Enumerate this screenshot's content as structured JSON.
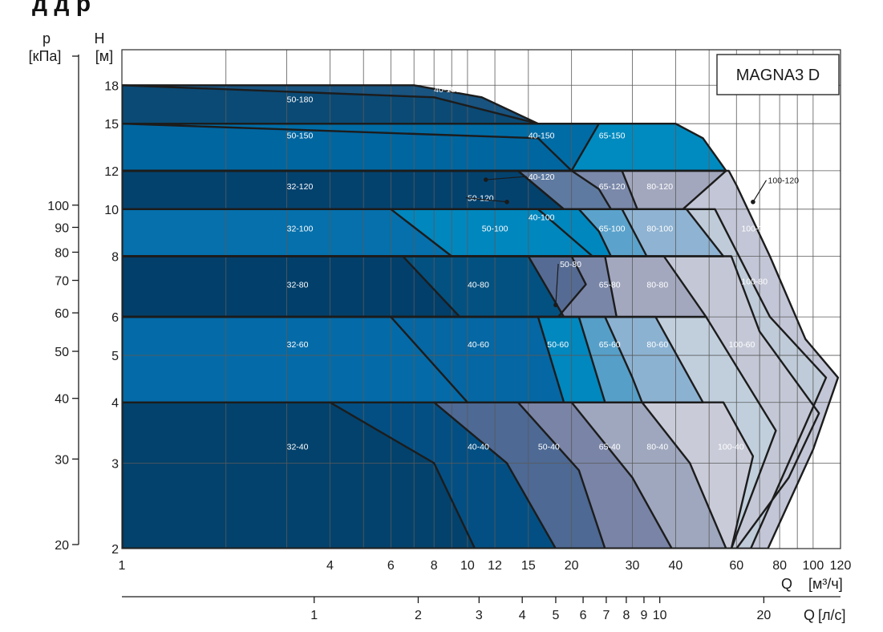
{
  "header_fragment": "д                        д         р",
  "brand_label": "MAGNA3 D",
  "chart_data": {
    "type": "area",
    "title": "",
    "xscale": "log",
    "yscale": "log",
    "xlim": [
      1,
      120
    ],
    "ylim": [
      2,
      20
    ],
    "grid": true,
    "x_unit_label": "Q",
    "x_unit": "[м³/ч]",
    "y_unit_label": "H",
    "y_unit": "[м]",
    "secondary_y_label": "p",
    "secondary_y_unit": "[кПа]",
    "secondary_x_label": "Q",
    "secondary_x_unit": "[л/с]",
    "x_ticks": [
      1,
      4,
      6,
      8,
      10,
      12,
      15,
      20,
      30,
      40,
      60,
      80,
      100,
      120
    ],
    "x_tick_labels": [
      "1",
      "4",
      "6",
      "8",
      "10",
      "12",
      "15",
      "20",
      "30",
      "40",
      "60",
      "80",
      "100",
      "120"
    ],
    "x_grid": [
      1,
      2,
      3,
      4,
      5,
      6,
      7,
      8,
      9,
      10,
      12,
      15,
      20,
      30,
      40,
      50,
      60,
      70,
      80,
      90,
      100,
      120
    ],
    "y_ticks": [
      2,
      3,
      4,
      5,
      6,
      8,
      10,
      12,
      15,
      18
    ],
    "y_tick_labels": [
      "2",
      "3",
      "4",
      "5",
      "6",
      "8",
      "10",
      "12",
      "15",
      "18"
    ],
    "secondary_y_ticks": [
      20,
      30,
      40,
      50,
      60,
      70,
      80,
      90,
      100
    ],
    "secondary_y_tick_labels": [
      "20",
      "30",
      "40",
      "50",
      "60",
      "70",
      "80",
      "90",
      "100"
    ],
    "secondary_x_ticks": [
      1,
      2,
      3,
      4,
      5,
      6,
      7,
      8,
      9,
      10,
      20
    ],
    "secondary_x_tick_labels": [
      "1",
      "2",
      "3",
      "4",
      "5",
      "6",
      "7",
      "8",
      "9",
      "10",
      "20"
    ],
    "regions": [
      {
        "name": "100-120",
        "color": "#c3c6d6",
        "label_color": "#1a1a1a",
        "label_at": [
          74,
          11.3
        ],
        "leader_to": [
          67,
          10.35
        ],
        "points": [
          [
            57,
            12
          ],
          [
            60,
            11.2
          ],
          [
            75,
            8
          ],
          [
            95,
            5.4
          ],
          [
            118,
            4.5
          ],
          [
            100,
            3.2
          ],
          [
            74,
            2
          ],
          [
            1,
            2
          ],
          [
            1,
            12
          ]
        ]
      },
      {
        "name": "100-100",
        "color": "#bfcbd8",
        "label_color": "#ffffff",
        "label_at": [
          62,
          9
        ],
        "points": [
          [
            52,
            10
          ],
          [
            75,
            6
          ],
          [
            109,
            4.5
          ],
          [
            95,
            3.6
          ],
          [
            66,
            2
          ],
          [
            1,
            2
          ],
          [
            1,
            10
          ]
        ]
      },
      {
        "name": "100-80",
        "color": "#c4c8d6",
        "label_color": "#ffffff",
        "label_at": [
          62,
          7
        ],
        "points": [
          [
            58,
            8
          ],
          [
            70,
            5.6
          ],
          [
            104,
            3.8
          ],
          [
            85,
            2.8
          ],
          [
            60,
            2
          ],
          [
            1,
            2
          ],
          [
            1,
            8
          ]
        ]
      },
      {
        "name": "100-60",
        "color": "#c1cfdd",
        "label_color": "#ffffff",
        "label_at": [
          57,
          5.2
        ],
        "points": [
          [
            49,
            6
          ],
          [
            78,
            3.5
          ],
          [
            58,
            2
          ],
          [
            1,
            2
          ],
          [
            1,
            6
          ]
        ]
      },
      {
        "name": "100-40",
        "color": "#c9cbd8",
        "label_color": "#ffffff",
        "label_at": [
          53,
          3.2
        ],
        "points": [
          [
            55,
            4
          ],
          [
            67,
            3.1
          ],
          [
            58,
            2
          ],
          [
            1,
            2
          ],
          [
            1,
            4
          ]
        ]
      },
      {
        "name": "80-120",
        "color": "#a2a7bd",
        "label_color": "#ffffff",
        "label_at": [
          33,
          11
        ],
        "points": [
          [
            1,
            12
          ],
          [
            56,
            12
          ],
          [
            42,
            10
          ],
          [
            1,
            10
          ]
        ]
      },
      {
        "name": "80-100",
        "color": "#8fb3d2",
        "label_color": "#ffffff",
        "label_at": [
          33,
          9
        ],
        "points": [
          [
            1,
            10
          ],
          [
            43,
            10
          ],
          [
            55,
            8
          ],
          [
            1,
            8
          ]
        ]
      },
      {
        "name": "80-80",
        "color": "#a3a8bf",
        "label_color": "#ffffff",
        "label_at": [
          33,
          6.9
        ],
        "points": [
          [
            1,
            8
          ],
          [
            37,
            8
          ],
          [
            49,
            6
          ],
          [
            1,
            6
          ]
        ]
      },
      {
        "name": "80-60",
        "color": "#8cb2d2",
        "label_color": "#ffffff",
        "label_at": [
          33,
          5.2
        ],
        "points": [
          [
            1,
            6
          ],
          [
            35,
            6
          ],
          [
            48,
            4
          ],
          [
            1,
            4
          ]
        ]
      },
      {
        "name": "80-40",
        "color": "#9fa7be",
        "label_color": "#ffffff",
        "label_at": [
          33,
          3.2
        ],
        "points": [
          [
            1,
            4
          ],
          [
            32,
            4
          ],
          [
            44,
            3
          ],
          [
            56,
            2
          ],
          [
            1,
            2
          ]
        ]
      },
      {
        "name": "65-150",
        "color": "#008bc0",
        "label_color": "#ffffff",
        "label_at": [
          24,
          14
        ],
        "points": [
          [
            1,
            15
          ],
          [
            40,
            15
          ],
          [
            48,
            14
          ],
          [
            56,
            12
          ],
          [
            1,
            12
          ]
        ]
      },
      {
        "name": "65-120",
        "color": "#7a88a9",
        "label_color": "#ffffff",
        "label_at": [
          24,
          11
        ],
        "points": [
          [
            1,
            12
          ],
          [
            28,
            12
          ],
          [
            31,
            10
          ],
          [
            1,
            10
          ]
        ]
      },
      {
        "name": "65-100",
        "color": "#5ba3cc",
        "label_color": "#ffffff",
        "label_at": [
          24,
          9
        ],
        "points": [
          [
            1,
            10
          ],
          [
            28,
            10
          ],
          [
            33,
            8
          ],
          [
            1,
            8
          ]
        ]
      },
      {
        "name": "65-80",
        "color": "#7a86a8",
        "label_color": "#ffffff",
        "label_at": [
          24,
          6.9
        ],
        "points": [
          [
            1,
            8
          ],
          [
            25,
            8
          ],
          [
            27,
            6
          ],
          [
            1,
            6
          ]
        ]
      },
      {
        "name": "65-60",
        "color": "#569fc8",
        "label_color": "#ffffff",
        "label_at": [
          24,
          5.2
        ],
        "points": [
          [
            1,
            6
          ],
          [
            25,
            6
          ],
          [
            30,
            4.5
          ],
          [
            32,
            4
          ],
          [
            1,
            4
          ]
        ]
      },
      {
        "name": "65-40",
        "color": "#7984a6",
        "label_color": "#ffffff",
        "label_at": [
          24,
          3.2
        ],
        "points": [
          [
            1,
            4
          ],
          [
            20,
            4
          ],
          [
            30,
            2.8
          ],
          [
            39,
            2
          ],
          [
            1,
            2
          ]
        ]
      },
      {
        "name": "40-120",
        "color": "#5f7aa0",
        "label_color": "#ffffff",
        "label_at": [
          15,
          11.5
        ],
        "leader_to": [
          11.3,
          11.5
        ],
        "points": [
          [
            1,
            12
          ],
          [
            20,
            12
          ],
          [
            24,
            11
          ],
          [
            26,
            10
          ],
          [
            1,
            10
          ]
        ]
      },
      {
        "name": "50-120",
        "color": "#3b6d9c",
        "label_color": "#ffffff",
        "label_at": [
          10,
          10.4
        ],
        "leader_to": [
          13,
          10.35
        ],
        "points": [
          [
            1,
            12
          ],
          [
            14,
            12
          ],
          [
            19,
            10
          ],
          [
            1,
            10
          ]
        ]
      },
      {
        "name": "50-100",
        "color": "#006ea9",
        "label_color": "#ffffff",
        "label_at": [
          11,
          9
        ],
        "points": [
          [
            1,
            10
          ],
          [
            16,
            10
          ],
          [
            23,
            8
          ],
          [
            1,
            8
          ]
        ]
      },
      {
        "name": "40-100",
        "color": "#0087be",
        "label_color": "#ffffff",
        "label_at": [
          15,
          9.5
        ],
        "points": [
          [
            1,
            10
          ],
          [
            21,
            10
          ],
          [
            24,
            9
          ],
          [
            26,
            8
          ],
          [
            1,
            8
          ]
        ]
      },
      {
        "name": "50-80",
        "color": "#566b93",
        "label_color": "#ffffff",
        "label_at": [
          18.5,
          7.6
        ],
        "leader_to": [
          18,
          6.35
        ],
        "points": [
          [
            1,
            8
          ],
          [
            20,
            8
          ],
          [
            22,
            7
          ],
          [
            18.3,
            6
          ],
          [
            1,
            6
          ]
        ]
      },
      {
        "name": "50-60",
        "color": "#0088bf",
        "label_color": "#ffffff",
        "label_at": [
          17,
          5.2
        ],
        "points": [
          [
            1,
            6
          ],
          [
            21,
            6
          ],
          [
            25,
            4
          ],
          [
            1,
            4
          ]
        ]
      },
      {
        "name": "50-40",
        "color": "#4d6994",
        "label_color": "#ffffff",
        "label_at": [
          16,
          3.2
        ],
        "points": [
          [
            1,
            4
          ],
          [
            14,
            4
          ],
          [
            21,
            2.9
          ],
          [
            25,
            2
          ],
          [
            1,
            2
          ]
        ]
      },
      {
        "name": "40-180",
        "color": "#19537f",
        "label_color": "#ffffff",
        "label_at": [
          8,
          17.4
        ],
        "points": [
          [
            1,
            18
          ],
          [
            7,
            18
          ],
          [
            11,
            17
          ],
          [
            16,
            15
          ],
          [
            1,
            15
          ]
        ]
      },
      {
        "name": "50-180",
        "color": "#0b4a75",
        "label_color": "#ffffff",
        "label_at": [
          3,
          16.6
        ],
        "points": [
          [
            1,
            18
          ],
          [
            8,
            17
          ],
          [
            16,
            15
          ],
          [
            1,
            15
          ]
        ]
      },
      {
        "name": "40-150",
        "color": "#006ca6",
        "label_color": "#ffffff",
        "label_at": [
          15,
          14
        ],
        "points": [
          [
            1,
            15
          ],
          [
            24,
            15
          ],
          [
            20,
            12
          ],
          [
            1,
            12
          ]
        ]
      },
      {
        "name": "50-150",
        "color": "#0066a0",
        "label_color": "#ffffff",
        "label_at": [
          3,
          14
        ],
        "points": [
          [
            1,
            15
          ],
          [
            16,
            14
          ],
          [
            20,
            12
          ],
          [
            1,
            12
          ]
        ]
      },
      {
        "name": "32-120",
        "color": "#04426e",
        "label_color": "#ffffff",
        "label_at": [
          3,
          11
        ],
        "points": [
          [
            1,
            12
          ],
          [
            14,
            12
          ],
          [
            19,
            10
          ],
          [
            1,
            10
          ]
        ]
      },
      {
        "name": "40-80",
        "color": "#035180",
        "label_color": "#ffffff",
        "label_at": [
          10,
          6.9
        ],
        "points": [
          [
            1,
            8
          ],
          [
            15,
            8
          ],
          [
            19,
            6
          ],
          [
            1,
            6
          ]
        ]
      },
      {
        "name": "40-60",
        "color": "#0567a3",
        "label_color": "#ffffff",
        "label_at": [
          10,
          5.2
        ],
        "points": [
          [
            1,
            6
          ],
          [
            16,
            6
          ],
          [
            19,
            4
          ],
          [
            1,
            4
          ]
        ]
      },
      {
        "name": "40-40",
        "color": "#034f83",
        "label_color": "#ffffff",
        "label_at": [
          10,
          3.2
        ],
        "points": [
          [
            1,
            4
          ],
          [
            8,
            4
          ],
          [
            13,
            3
          ],
          [
            18,
            2
          ],
          [
            1,
            2
          ]
        ]
      },
      {
        "name": "32-100",
        "color": "#0570ac",
        "label_color": "#ffffff",
        "label_at": [
          3,
          9
        ],
        "points": [
          [
            1,
            10
          ],
          [
            6,
            10
          ],
          [
            9,
            8
          ],
          [
            1,
            8
          ]
        ]
      },
      {
        "name": "32-80",
        "color": "#023f6b",
        "label_color": "#ffffff",
        "label_at": [
          3,
          6.9
        ],
        "points": [
          [
            1,
            8
          ],
          [
            6.5,
            8
          ],
          [
            9.5,
            6
          ],
          [
            1,
            6
          ]
        ]
      },
      {
        "name": "32-60",
        "color": "#046ba8",
        "label_color": "#ffffff",
        "label_at": [
          3,
          5.2
        ],
        "points": [
          [
            1,
            6
          ],
          [
            6,
            6
          ],
          [
            10,
            4
          ],
          [
            1,
            4
          ]
        ]
      },
      {
        "name": "32-40",
        "color": "#03426c",
        "label_color": "#ffffff",
        "label_at": [
          3,
          3.2
        ],
        "points": [
          [
            1,
            4
          ],
          [
            4,
            4
          ],
          [
            8,
            3
          ],
          [
            10.5,
            2
          ],
          [
            1,
            2
          ]
        ]
      }
    ]
  }
}
